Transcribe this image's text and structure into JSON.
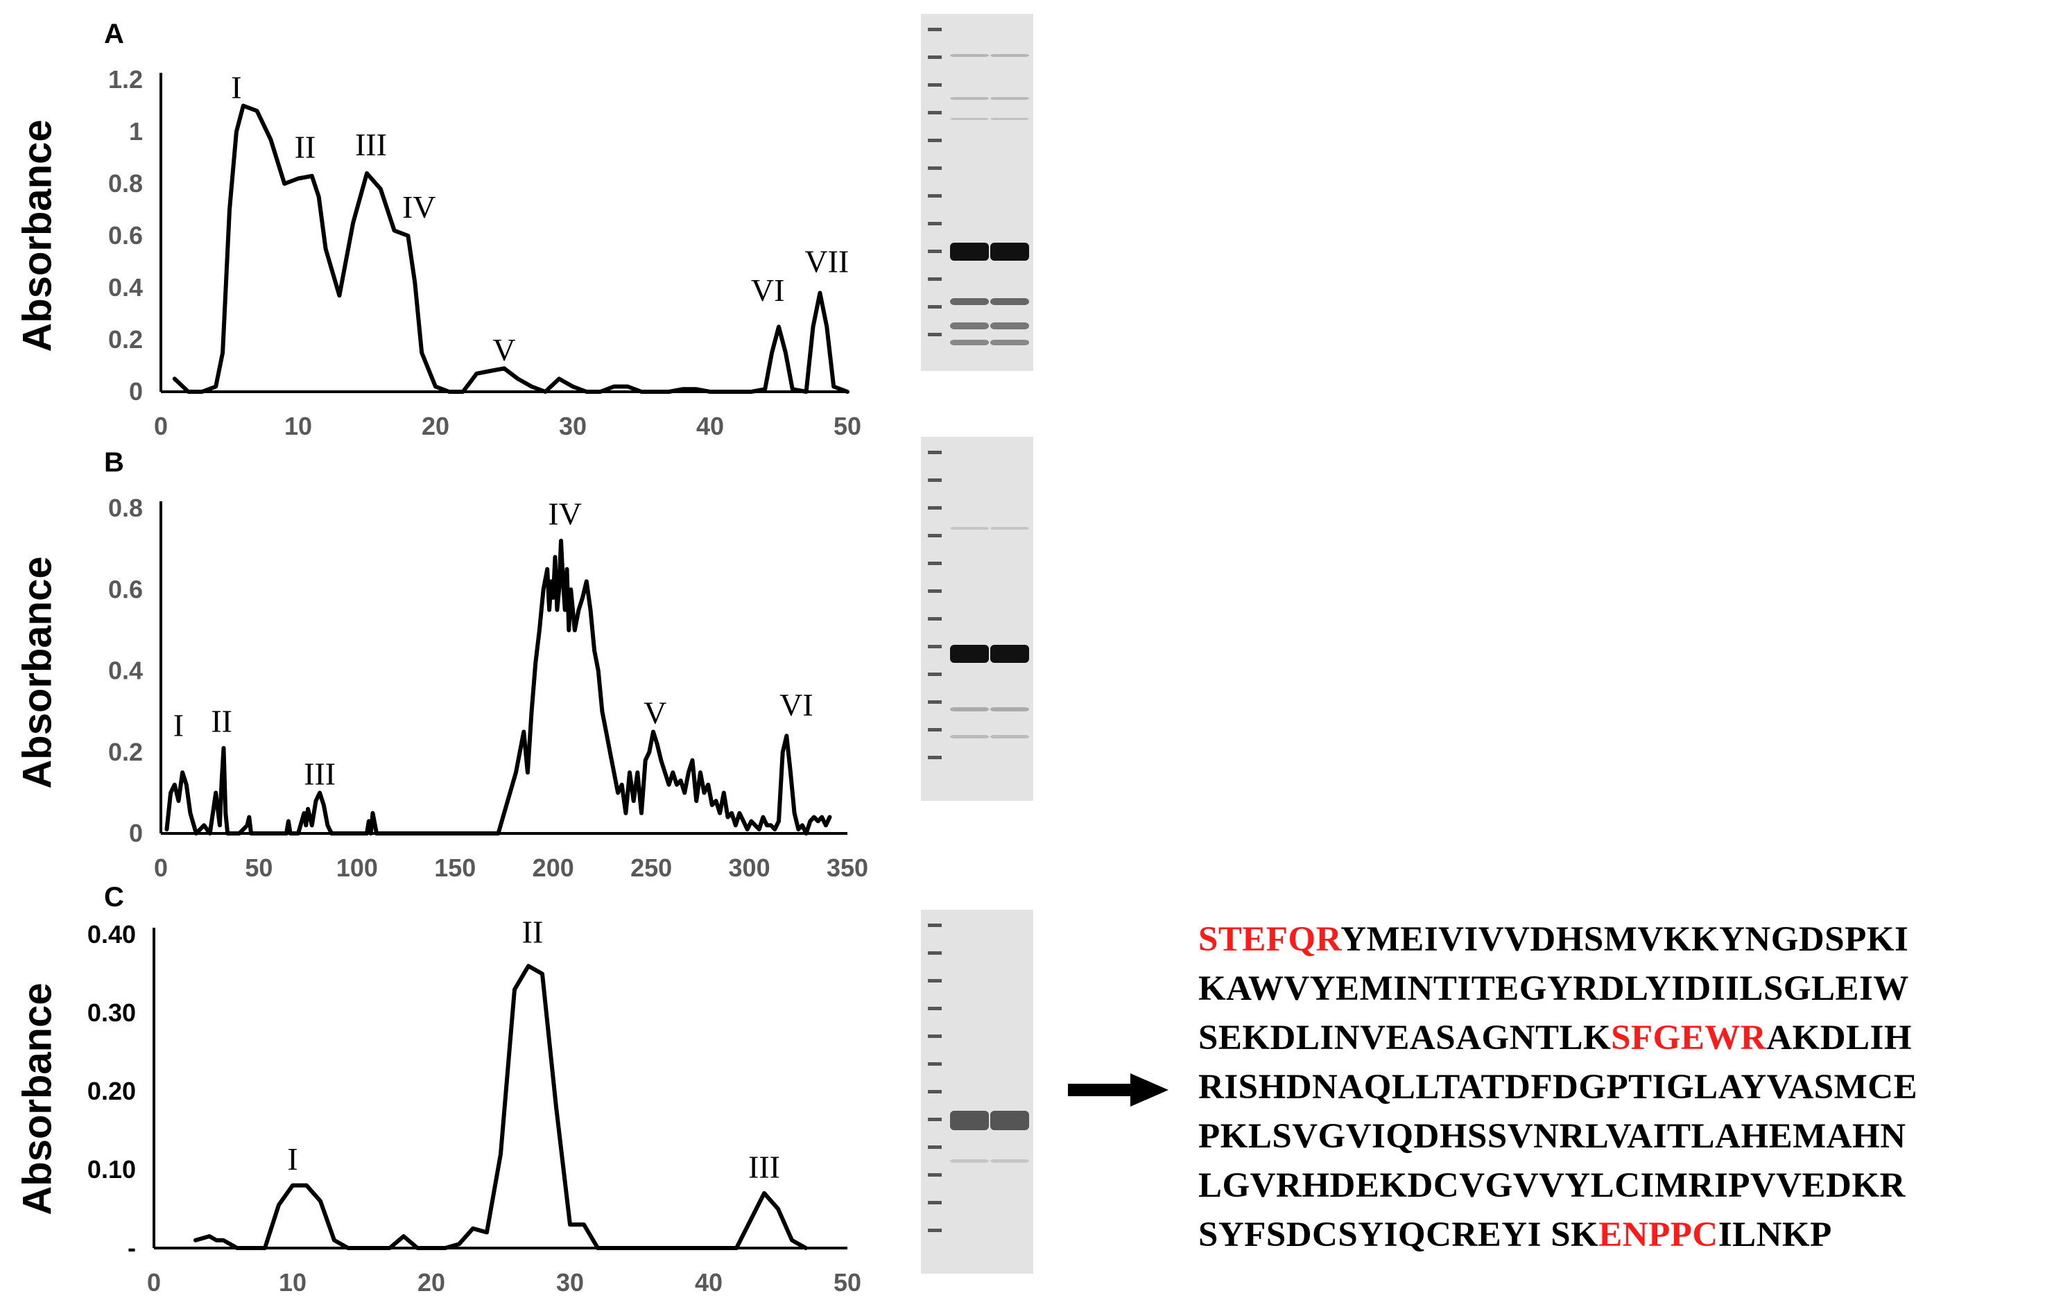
{
  "panels": [
    {
      "letter": "A",
      "ylabel": "Absorbance"
    },
    {
      "letter": "B",
      "ylabel": "Absorbance"
    },
    {
      "letter": "C",
      "ylabel": "Absorbance"
    }
  ],
  "chart_data": [
    {
      "type": "line",
      "panel": "A",
      "title": "",
      "xlabel": "",
      "ylabel": "Absorbance",
      "xlim": [
        0,
        50
      ],
      "ylim": [
        0,
        1.2
      ],
      "x_ticks": [
        "0",
        "10",
        "20",
        "30",
        "40",
        "50"
      ],
      "y_ticks": [
        "0",
        "0.2",
        "0.4",
        "0.6",
        "0.8",
        "1",
        "1.2"
      ],
      "series": [
        {
          "x": [
            1,
            2,
            3,
            4,
            4.5,
            5,
            5.5,
            6,
            7,
            8,
            9,
            10,
            11,
            11.5,
            12,
            13,
            14,
            15,
            16,
            17,
            18,
            18.5,
            19,
            20,
            21,
            22,
            23,
            24,
            25,
            26,
            27,
            28,
            29,
            30,
            31,
            32,
            33,
            34,
            35,
            36,
            37,
            38,
            39,
            40,
            41,
            42,
            43,
            44,
            44.5,
            45,
            45.5,
            46,
            47,
            47.5,
            48,
            48.5,
            49,
            50
          ],
          "y": [
            0.05,
            0,
            0,
            0.02,
            0.15,
            0.7,
            1.0,
            1.1,
            1.08,
            0.97,
            0.8,
            0.82,
            0.83,
            0.75,
            0.55,
            0.37,
            0.65,
            0.84,
            0.78,
            0.62,
            0.6,
            0.42,
            0.15,
            0.02,
            0,
            0,
            0.07,
            0.08,
            0.09,
            0.05,
            0.02,
            0,
            0.05,
            0.02,
            0,
            0,
            0.02,
            0.02,
            0,
            0,
            0,
            0.01,
            0.01,
            0,
            0,
            0,
            0,
            0.01,
            0.15,
            0.25,
            0.15,
            0.01,
            0,
            0.25,
            0.38,
            0.25,
            0.02,
            0
          ]
        }
      ],
      "annotations": [
        {
          "text": "I",
          "x": 5.5,
          "y": 1.13
        },
        {
          "text": "II",
          "x": 10.5,
          "y": 0.9
        },
        {
          "text": "III",
          "x": 15.3,
          "y": 0.91
        },
        {
          "text": "IV",
          "x": 18.8,
          "y": 0.67
        },
        {
          "text": "V",
          "x": 25.0,
          "y": 0.12
        },
        {
          "text": "VI",
          "x": 44.2,
          "y": 0.35
        },
        {
          "text": "VII",
          "x": 48.5,
          "y": 0.46
        }
      ]
    },
    {
      "type": "line",
      "panel": "B",
      "title": "",
      "xlabel": "",
      "ylabel": "Absorbance",
      "xlim": [
        0,
        350
      ],
      "ylim": [
        0,
        0.8
      ],
      "x_ticks": [
        "0",
        "50",
        "100",
        "150",
        "200",
        "250",
        "300",
        "350"
      ],
      "y_ticks": [
        "0",
        "0.2",
        "0.4",
        "0.6",
        "0.8"
      ],
      "series": [
        {
          "x": [
            3,
            5,
            7,
            9,
            11,
            13,
            15,
            18,
            22,
            25,
            28,
            30,
            31,
            32,
            33,
            34,
            40,
            44,
            45,
            46,
            64,
            65,
            66,
            70,
            73,
            74,
            75,
            77,
            79,
            81,
            83,
            85,
            87,
            90,
            105,
            106,
            107,
            108,
            110,
            145,
            172,
            175,
            178,
            181,
            183,
            185,
            187,
            189,
            191,
            193,
            195,
            197,
            198,
            199,
            200,
            201,
            202,
            203,
            204,
            205,
            206,
            207,
            208,
            209,
            210,
            211,
            213,
            215,
            217,
            219,
            221,
            223,
            225,
            227,
            229,
            231,
            233,
            235,
            237,
            239,
            241,
            243,
            245,
            247,
            249,
            251,
            253,
            255,
            257,
            259,
            261,
            263,
            265,
            267,
            269,
            271,
            273,
            275,
            277,
            279,
            281,
            283,
            285,
            287,
            289,
            291,
            293,
            295,
            297,
            299,
            301,
            303,
            305,
            307,
            309,
            311,
            313,
            315,
            317,
            319,
            321,
            323,
            325,
            327,
            329,
            331,
            333,
            335,
            337,
            339,
            341
          ],
          "y": [
            0.01,
            0.1,
            0.12,
            0.08,
            0.15,
            0.12,
            0.05,
            0,
            0.02,
            0,
            0.1,
            0.02,
            0.13,
            0.21,
            0.05,
            0,
            0,
            0.02,
            0.04,
            0,
            0,
            0.03,
            0,
            0,
            0.05,
            0.02,
            0.06,
            0.02,
            0.08,
            0.1,
            0.07,
            0.02,
            0,
            0,
            0,
            0.03,
            0,
            0.05,
            0,
            0,
            0,
            0.05,
            0.1,
            0.15,
            0.2,
            0.25,
            0.15,
            0.3,
            0.42,
            0.5,
            0.6,
            0.65,
            0.55,
            0.62,
            0.58,
            0.68,
            0.55,
            0.6,
            0.72,
            0.62,
            0.55,
            0.65,
            0.5,
            0.6,
            0.55,
            0.5,
            0.55,
            0.58,
            0.62,
            0.55,
            0.45,
            0.4,
            0.3,
            0.25,
            0.2,
            0.15,
            0.1,
            0.12,
            0.05,
            0.15,
            0.08,
            0.15,
            0.05,
            0.18,
            0.2,
            0.25,
            0.22,
            0.18,
            0.15,
            0.12,
            0.15,
            0.12,
            0.13,
            0.1,
            0.15,
            0.18,
            0.08,
            0.15,
            0.1,
            0.12,
            0.07,
            0.08,
            0.05,
            0.1,
            0.04,
            0.05,
            0.02,
            0.05,
            0.03,
            0.01,
            0.03,
            0.02,
            0.01,
            0.04,
            0.02,
            0.02,
            0.01,
            0.03,
            0.2,
            0.24,
            0.15,
            0.05,
            0.01,
            0.02,
            0,
            0.03,
            0.04,
            0.03,
            0.04,
            0.02,
            0.04
          ]
        }
      ],
      "annotations": [
        {
          "text": "I",
          "x": 9,
          "y": 0.24
        },
        {
          "text": "II",
          "x": 31,
          "y": 0.25
        },
        {
          "text": "III",
          "x": 81,
          "y": 0.12
        },
        {
          "text": "IV",
          "x": 206,
          "y": 0.76
        },
        {
          "text": "V",
          "x": 252,
          "y": 0.27
        },
        {
          "text": "VI",
          "x": 324,
          "y": 0.29
        }
      ]
    },
    {
      "type": "line",
      "panel": "C",
      "title": "",
      "xlabel": "",
      "ylabel": "Absorbance",
      "xlim": [
        0,
        50
      ],
      "ylim": [
        0,
        0.4
      ],
      "x_ticks": [
        "0",
        "10",
        "20",
        "30",
        "40",
        "50"
      ],
      "y_ticks": [
        "-",
        "0.10",
        "0.20",
        "0.30",
        "0.40"
      ],
      "series": [
        {
          "x": [
            3,
            4,
            4.5,
            5,
            6,
            8,
            9,
            10,
            11,
            12,
            13,
            14,
            15,
            16,
            17,
            18,
            19,
            20,
            21,
            22,
            23,
            24,
            25,
            26,
            27,
            28,
            29,
            30,
            30.5,
            31,
            32,
            33,
            40,
            42,
            43,
            44,
            45,
            46,
            47
          ],
          "y": [
            0.01,
            0.015,
            0.01,
            0.01,
            0,
            0,
            0.055,
            0.08,
            0.08,
            0.06,
            0.01,
            0,
            0,
            0,
            0,
            0.015,
            0,
            0,
            0,
            0.005,
            0.025,
            0.02,
            0.12,
            0.33,
            0.36,
            0.35,
            0.18,
            0.03,
            0.03,
            0.03,
            0,
            0,
            0,
            0,
            0.035,
            0.07,
            0.05,
            0.01,
            0
          ]
        }
      ],
      "annotations": [
        {
          "text": "I",
          "x": 10,
          "y": 0.1
        },
        {
          "text": "II",
          "x": 27.3,
          "y": 0.39
        },
        {
          "text": "III",
          "x": 44,
          "y": 0.09
        }
      ]
    }
  ],
  "sequence": {
    "arrow": "right-arrow",
    "lines": [
      [
        {
          "text": "STEFQR",
          "hl": true
        },
        {
          "text": "YMEIVIVVDHSMVKKYNGDSPKI",
          "hl": false
        }
      ],
      [
        {
          "text": "KAWVYEMINTITEGYRDLYIDIILSGLEIW",
          "hl": false
        }
      ],
      [
        {
          "text": "SEKDLINVEASAGNTLK",
          "hl": false
        },
        {
          "text": "SFGEWR",
          "hl": true
        },
        {
          "text": "AKDLIH",
          "hl": false
        }
      ],
      [
        {
          "text": "RISHDNAQLLTATDFDGPTIGLAYVASMCE",
          "hl": false
        }
      ],
      [
        {
          "text": "PKLSVGVIQDHSSVNRLVAITLAHEMAHN",
          "hl": false
        }
      ],
      [
        {
          "text": "LGVRHDEKDCVGVVYLCIMRIPVVEDKR",
          "hl": false
        }
      ],
      [
        {
          "text": "SYFSDCSYIQCREYI SK",
          "hl": false
        },
        {
          "text": "ENPPC",
          "hl": true
        },
        {
          "text": "ILNKP",
          "hl": false
        }
      ]
    ]
  },
  "colors": {
    "line": "#000000",
    "tick_label": "#595959",
    "highlight": "#ff1a1a"
  }
}
